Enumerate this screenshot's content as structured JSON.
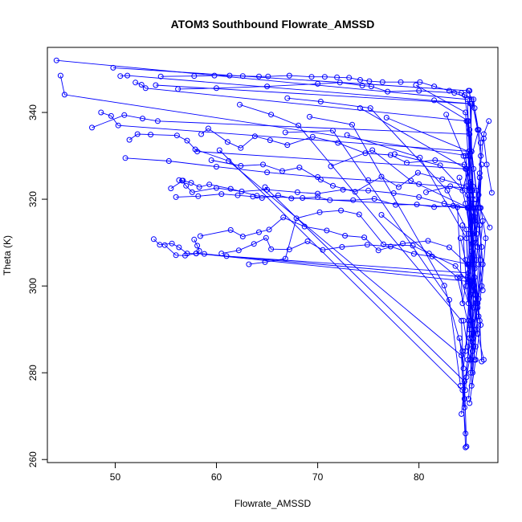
{
  "chart_data": {
    "type": "line",
    "title": "ATOM3 Southbound Flowrate_AMSSD",
    "xlabel": "Flowrate_AMSSD",
    "ylabel": "Theta (K)",
    "xlim": [
      43.3,
      87.8
    ],
    "ylim": [
      259.3,
      355.0
    ],
    "xticks": [
      50,
      60,
      70,
      80
    ],
    "yticks": [
      260,
      280,
      300,
      320,
      340
    ],
    "grid": false,
    "legend": "none",
    "colors": {
      "series": "#0000ff"
    },
    "series": [
      {
        "x": [
          44.2,
          84.8,
          85.1,
          85.6
        ],
        "y": [
          352.0,
          343.0,
          320.0,
          296.0
        ]
      },
      {
        "x": [
          44.6,
          45.0,
          84.9,
          85.3,
          84.6
        ],
        "y": [
          348.5,
          344.1,
          330.0,
          310.0,
          285.0
        ]
      },
      {
        "x": [
          49.8,
          85.0,
          85.4,
          85.0
        ],
        "y": [
          350.3,
          345.0,
          318.0,
          301.0
        ]
      },
      {
        "x": [
          50.5,
          51.2,
          85.2,
          84.9,
          85.1
        ],
        "y": [
          348.4,
          348.5,
          342.0,
          312.0,
          298.0
        ]
      },
      {
        "x": [
          52.0,
          52.6,
          53.0,
          84.8,
          85.5,
          85.0
        ],
        "y": [
          346.9,
          346.4,
          345.6,
          338.0,
          315.0,
          288.0
        ]
      },
      {
        "x": [
          54.0,
          85.1,
          85.3
        ],
        "y": [
          346.3,
          342.0,
          322.0
        ]
      },
      {
        "x": [
          54.5,
          57.8,
          59.8,
          61.3,
          62.6,
          64.2,
          65.1,
          67.2,
          69.4,
          70.7,
          71.9,
          73.1,
          74.2,
          75.1,
          76.4,
          78.2,
          80.1,
          81.5,
          83.0,
          84.2,
          85.4,
          86.1
        ],
        "y": [
          348.3,
          348.4,
          348.5,
          348.5,
          348.4,
          348.3,
          348.3,
          348.5,
          348.2,
          348.2,
          348.1,
          348.0,
          347.5,
          347.2,
          347.0,
          347.0,
          347.0,
          346.0,
          345.0,
          344.5,
          343.0,
          330.0
        ]
      },
      {
        "x": [
          56.2,
          60.0,
          65.0,
          70.0,
          72.2,
          74.4,
          75.3,
          76.9,
          80.0,
          83.5,
          85.2,
          85.8
        ],
        "y": [
          345.4,
          345.6,
          346.0,
          346.6,
          346.9,
          346.2,
          346.0,
          344.8,
          345.0,
          344.5,
          343.0,
          336.0
        ]
      },
      {
        "x": [
          47.7,
          50.9,
          52.7,
          54.2,
          85.0,
          85.3
        ],
        "y": [
          336.5,
          339.4,
          338.6,
          338.0,
          335.0,
          318.0
        ]
      },
      {
        "x": [
          48.6,
          49.6,
          50.3,
          85.2,
          85.6,
          85.1
        ],
        "y": [
          340.0,
          339.2,
          337.0,
          331.0,
          310.0,
          280.0
        ]
      },
      {
        "x": [
          51.4,
          52.2,
          53.5,
          56.1,
          57.1,
          58.1,
          84.6,
          85.1
        ],
        "y": [
          333.7,
          335.0,
          334.9,
          334.7,
          333.5,
          331.0,
          327.0,
          305.0
        ]
      },
      {
        "x": [
          51.0,
          55.3,
          60.0,
          65.0,
          70.0,
          75.0,
          80.0,
          85.0,
          85.4
        ],
        "y": [
          329.5,
          328.8,
          327.5,
          326.2,
          325.1,
          324.4,
          323.5,
          322.5,
          300.0
        ]
      },
      {
        "x": [
          55.5,
          56.7,
          57.5,
          58.3,
          59.3,
          61.4,
          64.0,
          85.0,
          85.4
        ],
        "y": [
          322.5,
          324.3,
          323.8,
          322.8,
          323.4,
          322.4,
          320.8,
          318.0,
          295.0
        ]
      },
      {
        "x": [
          56.3,
          56.6,
          57.0,
          57.6,
          60.0,
          62.5,
          65.0,
          68.0,
          70.0,
          72.5,
          75.0,
          77.5,
          80.0,
          82.5,
          84.9,
          85.7
        ],
        "y": [
          324.4,
          324.3,
          323.1,
          321.6,
          322.6,
          321.8,
          322.2,
          321.6,
          321.3,
          322.2,
          322.0,
          321.4,
          320.5,
          319.0,
          318.0,
          306.0
        ]
      },
      {
        "x": [
          56.0,
          58.2,
          60.5,
          62.1,
          63.6,
          64.5,
          66.1,
          67.4,
          68.5,
          70.0,
          71.2,
          73.5,
          75.6,
          77.7,
          79.8,
          81.5,
          83.4,
          84.8,
          85.5
        ],
        "y": [
          320.5,
          320.7,
          321.2,
          320.9,
          320.6,
          320.3,
          320.9,
          320.2,
          320.3,
          320.5,
          319.8,
          319.8,
          320.1,
          318.7,
          318.8,
          318.2,
          318.5,
          318.0,
          316.0
        ]
      },
      {
        "x": [
          58.5,
          59.2,
          61.1,
          62.4,
          63.8,
          65.3,
          67.0,
          69.5,
          72.0,
          74.7,
          77.2,
          78.8,
          81.6,
          84.5,
          85.3
        ],
        "y": [
          335.0,
          336.3,
          333.2,
          331.8,
          334.5,
          333.6,
          332.5,
          334.4,
          333.0,
          330.6,
          330.2,
          328.4,
          329.0,
          328.0,
          323.0
        ]
      },
      {
        "x": [
          59.5,
          62.4,
          64.6,
          66.5,
          68.2,
          70.3,
          71.5,
          73.7,
          76.3,
          78.0,
          79.9,
          82.3,
          84.7,
          85.6
        ],
        "y": [
          329.0,
          327.7,
          328.0,
          326.5,
          327.3,
          324.5,
          323.1,
          321.7,
          325.2,
          322.8,
          326.1,
          324.6,
          323.0,
          320.0
        ]
      },
      {
        "x": [
          53.8,
          54.4,
          55.6,
          56.3,
          57.1,
          58.8,
          61.0,
          84.9,
          85.6
        ],
        "y": [
          310.8,
          309.5,
          309.8,
          308.9,
          307.5,
          307.4,
          306.9,
          303.0,
          286.0
        ]
      },
      {
        "x": [
          54.9,
          56.0,
          56.9,
          58.0,
          85.1,
          85.5
        ],
        "y": [
          309.4,
          307.1,
          307.0,
          307.5,
          301.0,
          283.0
        ]
      },
      {
        "x": [
          57.8,
          58.1,
          58.3,
          58.0,
          84.8,
          85.2
        ],
        "y": [
          310.7,
          309.3,
          308.1,
          307.5,
          302.0,
          290.0
        ]
      },
      {
        "x": [
          58.4,
          61.4,
          62.6,
          64.2,
          65.2,
          66.6,
          68.7,
          70.9,
          72.7,
          74.6,
          76.0,
          78.4,
          80.9,
          83.0,
          84.8,
          85.4
        ],
        "y": [
          311.5,
          312.9,
          311.4,
          312.4,
          313.0,
          315.8,
          313.7,
          312.8,
          311.6,
          311.2,
          308.2,
          309.8,
          310.4,
          308.9,
          305.0,
          286.0
        ]
      },
      {
        "x": [
          60.5,
          62.2,
          63.7,
          64.9,
          65.4,
          67.2,
          69.0,
          70.5,
          72.4,
          74.9,
          77.2,
          79.5,
          81.3,
          84.9,
          85.3
        ],
        "y": [
          307.5,
          308.2,
          309.7,
          311.1,
          308.5,
          308.4,
          310.3,
          308.3,
          309.0,
          309.5,
          309.1,
          307.4,
          306.8,
          305.0,
          299.0
        ]
      },
      {
        "x": [
          63.2,
          64.8,
          66.8,
          67.9,
          70.2,
          72.3,
          74.1,
          76.5,
          79.4,
          81.0,
          83.6,
          84.8,
          85.2
        ],
        "y": [
          305.0,
          305.5,
          306.3,
          315.6,
          317.0,
          317.4,
          316.5,
          309.6,
          309.3,
          307.5,
          304.6,
          301.0,
          292.0
        ]
      },
      {
        "x": [
          60.3,
          84.3,
          84.6
        ],
        "y": [
          331.3,
          276.0,
          266.0
        ]
      },
      {
        "x": [
          64.8,
          84.5,
          84.7
        ],
        "y": [
          322.8,
          278.0,
          263.0
        ]
      },
      {
        "x": [
          57.9,
          61.2,
          84.2,
          84.6
        ],
        "y": [
          331.5,
          328.8,
          284.0,
          262.8
        ]
      },
      {
        "x": [
          66.8,
          71.5,
          83.0,
          84.1
        ],
        "y": [
          335.4,
          335.8,
          296.8,
          277.0
        ]
      },
      {
        "x": [
          69.2,
          73.4,
          82.5,
          84.3,
          84.5
        ],
        "y": [
          339.0,
          337.2,
          300.1,
          285.0,
          272.0
        ]
      },
      {
        "x": [
          62.3,
          65.4,
          68.1,
          84.2,
          84.5
        ],
        "y": [
          341.8,
          339.5,
          337.0,
          292.0,
          274.0
        ]
      },
      {
        "x": [
          67.0,
          70.3,
          75.2,
          82.8,
          84.7,
          85.0
        ],
        "y": [
          343.3,
          342.5,
          341.0,
          322.0,
          313.0,
          288.0
        ]
      },
      {
        "x": [
          74.2,
          84.7,
          85.5,
          85.1
        ],
        "y": [
          341.0,
          327.0,
          306.0,
          283.0
        ]
      },
      {
        "x": [
          76.8,
          84.9,
          85.6,
          85.2
        ],
        "y": [
          338.8,
          331.0,
          298.0,
          277.0
        ]
      },
      {
        "x": [
          79.7,
          84.6,
          85.3,
          85.8
        ],
        "y": [
          346.3,
          340.0,
          312.0,
          289.0
        ]
      },
      {
        "x": [
          81.5,
          84.9,
          85.4,
          86.3
        ],
        "y": [
          342.8,
          338.0,
          316.0,
          299.0
        ]
      },
      {
        "x": [
          76.3,
          83.8,
          85.0,
          84.6
        ],
        "y": [
          316.4,
          302.0,
          290.0,
          276.0
        ]
      },
      {
        "x": [
          72.9,
          80.1,
          84.7,
          85.3,
          84.9
        ],
        "y": [
          334.8,
          329.6,
          311.0,
          285.0,
          274.0
        ]
      },
      {
        "x": [
          71.3,
          75.4,
          79.2,
          84.9,
          85.8,
          86.4
        ],
        "y": [
          327.6,
          331.3,
          324.3,
          318.0,
          289.0,
          283.0
        ]
      },
      {
        "x": [
          77.6,
          82.1,
          84.8,
          85.5,
          86.0,
          86.2
        ],
        "y": [
          330.4,
          327.8,
          321.0,
          304.0,
          292.0,
          282.6
        ]
      },
      {
        "x": [
          80.7,
          83.1,
          84.3,
          85.9,
          86.4,
          86.7,
          87.2
        ],
        "y": [
          321.6,
          323.0,
          322.0,
          336.0,
          334.0,
          328.0,
          321.5
        ]
      },
      {
        "x": [
          82.7,
          84.4,
          85.1,
          85.7,
          86.2,
          86.0,
          87.0
        ],
        "y": [
          339.5,
          330.0,
          324.0,
          312.0,
          328.0,
          318.0,
          313.5
        ]
      },
      {
        "x": [
          83.8,
          84.3,
          85.2,
          86.0,
          86.4,
          86.9
        ],
        "y": [
          318.2,
          296.0,
          308.0,
          326.0,
          335.0,
          338.0
        ]
      },
      {
        "x": [
          84.0,
          84.4,
          84.9,
          85.4,
          85.8,
          86.1
        ],
        "y": [
          288.0,
          281.0,
          292.0,
          300.0,
          309.0,
          318.0
        ]
      },
      {
        "x": [
          84.2,
          84.8,
          85.2,
          85.6,
          85.9,
          86.3
        ],
        "y": [
          270.5,
          283.0,
          290.0,
          297.0,
          305.0,
          315.0
        ]
      },
      {
        "x": [
          84.6,
          85.0,
          85.5,
          86.1,
          85.7,
          85.3
        ],
        "y": [
          330.0,
          322.0,
          315.0,
          306.0,
          296.0,
          285.0
        ]
      },
      {
        "x": [
          84.1,
          84.9,
          85.6,
          86.0,
          85.4,
          84.8
        ],
        "y": [
          302.0,
          296.0,
          310.0,
          325.0,
          315.0,
          305.0
        ]
      },
      {
        "x": [
          84.3,
          84.7,
          85.3,
          85.8,
          86.2,
          85.6
        ],
        "y": [
          314.0,
          300.0,
          288.0,
          295.0,
          309.0,
          319.0
        ]
      },
      {
        "x": [
          84.5,
          85.0,
          85.4,
          85.9,
          86.1,
          85.5,
          84.9
        ],
        "y": [
          344.0,
          336.0,
          327.0,
          318.0,
          333.0,
          341.0,
          345.0
        ]
      },
      {
        "x": [
          84.0,
          84.6,
          85.1,
          85.5,
          85.9,
          85.3,
          84.7
        ],
        "y": [
          325.0,
          319.0,
          312.0,
          302.0,
          293.0,
          287.0,
          279.0
        ]
      },
      {
        "x": [
          84.4,
          84.8,
          85.3,
          85.7,
          86.2,
          86.6,
          85.9
        ],
        "y": [
          292.0,
          286.0,
          280.0,
          290.0,
          300.0,
          311.0,
          321.0
        ]
      },
      {
        "x": [
          84.1,
          84.6,
          85.2,
          85.8,
          86.1,
          85.6,
          85.0
        ],
        "y": [
          311.0,
          306.0,
          301.0,
          296.0,
          291.0,
          283.0,
          273.0
        ]
      },
      {
        "x": [
          84.7,
          85.2,
          85.7,
          86.0,
          86.3,
          85.9,
          85.4
        ],
        "y": [
          338.0,
          331.0,
          322.0,
          314.0,
          305.0,
          297.0,
          289.0
        ]
      }
    ]
  }
}
